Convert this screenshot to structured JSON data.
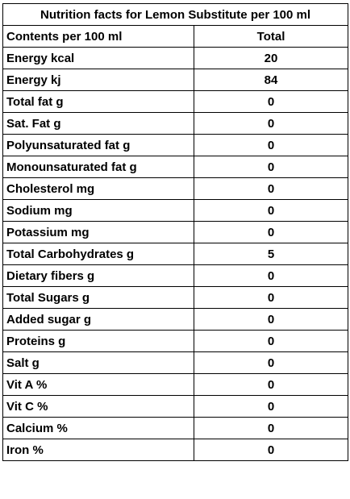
{
  "table": {
    "title": "Nutrition facts for Lemon Substitute per 100 ml",
    "header": {
      "label": "Contents per 100 ml",
      "value": "Total"
    },
    "rows": [
      {
        "label": "Energy kcal",
        "value": "20"
      },
      {
        "label": "Energy kj",
        "value": "84"
      },
      {
        "label": "Total fat g",
        "value": "0"
      },
      {
        "label": "Sat. Fat g",
        "value": "0"
      },
      {
        "label": "Polyunsaturated fat g",
        "value": "0"
      },
      {
        "label": "Monounsaturated fat g",
        "value": "0"
      },
      {
        "label": "Cholesterol mg",
        "value": "0"
      },
      {
        "label": "Sodium mg",
        "value": "0"
      },
      {
        "label": "Potassium mg",
        "value": "0"
      },
      {
        "label": "Total Carbohydrates g",
        "value": "5"
      },
      {
        "label": "Dietary fibers g",
        "value": "0"
      },
      {
        "label": "Total Sugars g",
        "value": "0"
      },
      {
        "label": "Added sugar g",
        "value": "0"
      },
      {
        "label": "Proteins g",
        "value": "0"
      },
      {
        "label": "Salt g",
        "value": "0"
      },
      {
        "label": "Vit A %",
        "value": "0"
      },
      {
        "label": "Vit C %",
        "value": "0"
      },
      {
        "label": "Calcium %",
        "value": "0"
      },
      {
        "label": "Iron %",
        "value": "0"
      }
    ]
  }
}
